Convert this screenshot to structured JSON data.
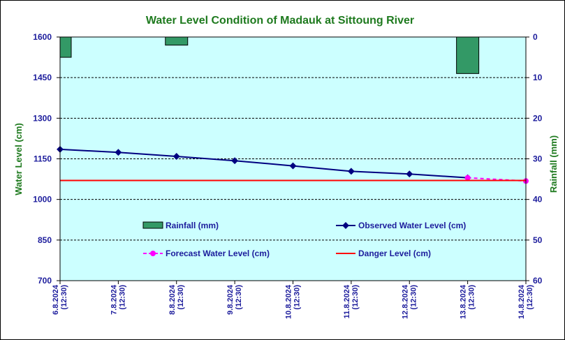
{
  "chart_data": {
    "type": "line",
    "title": "Water Level Condition of Madauk at Sittoung River",
    "ylabel": "Water Level (cm)",
    "y2label": "Rainfall (mm)",
    "ylim": [
      700,
      1600
    ],
    "yticks": [
      700,
      850,
      1000,
      1150,
      1300,
      1450,
      1600
    ],
    "y2lim": [
      0,
      60
    ],
    "y2ticks": [
      0,
      10,
      20,
      30,
      40,
      50,
      60
    ],
    "y2_inverted": true,
    "grid": true,
    "background": "#ccffff",
    "categories": [
      [
        "6.8.2024",
        "(12:30)"
      ],
      [
        "7.8.2024",
        "(12:30)"
      ],
      [
        "8.8.2024",
        "(12:30)"
      ],
      [
        "9.8.2024",
        "(12:30)"
      ],
      [
        "10.8.2024",
        "(12:30)"
      ],
      [
        "11.8.2024",
        "(12:30)"
      ],
      [
        "12.8.2024",
        "(12:30)"
      ],
      [
        "13.8.2024",
        "(12:30)"
      ],
      [
        "14.8.2024",
        "(12:30)"
      ]
    ],
    "series": [
      {
        "name": "Rainfall (mm)",
        "kind": "bar",
        "axis": "y2",
        "color": "#339966",
        "values": [
          5,
          null,
          2,
          null,
          null,
          null,
          null,
          9,
          null
        ]
      },
      {
        "name": "Observed Water Level (cm)",
        "kind": "line",
        "axis": "y",
        "color": "#000080",
        "values": [
          1185,
          1174,
          1159,
          1143,
          1124,
          1104,
          1094,
          1080,
          null
        ]
      },
      {
        "name": "Forecast Water Level (cm)",
        "kind": "line",
        "axis": "y",
        "color": "#ff00ff",
        "dashed": true,
        "values": [
          null,
          null,
          null,
          null,
          null,
          null,
          null,
          1080,
          1068
        ]
      },
      {
        "name": "Danger Level (cm)",
        "kind": "line",
        "axis": "y",
        "color": "#ff0000",
        "values": [
          1070,
          1070,
          1070,
          1070,
          1070,
          1070,
          1070,
          1070,
          1070
        ]
      }
    ],
    "legend_placement": "bottom-inside"
  }
}
